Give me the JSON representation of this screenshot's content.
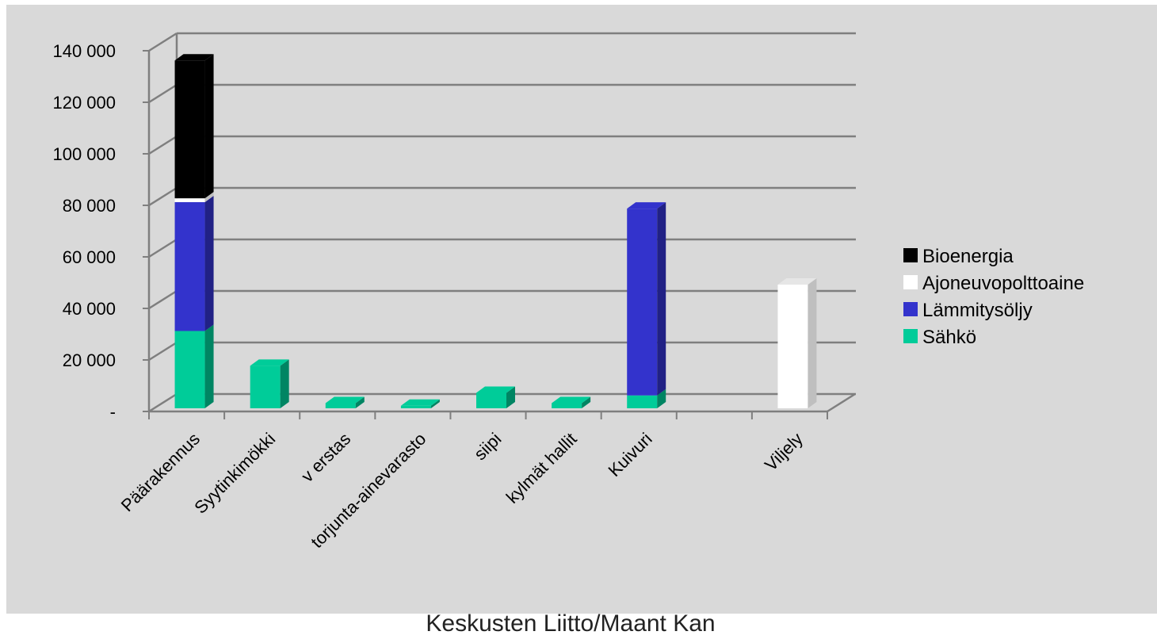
{
  "chart_data": {
    "type": "bar",
    "stacked": true,
    "three_d": true,
    "categories": [
      "Päärakennus",
      "Syytinkimökki",
      "v erstas",
      "torjunta-ainevarasto",
      "siipi",
      "kylmät hallit",
      "Kuivuri",
      "",
      "Viljely"
    ],
    "series": [
      {
        "name": "Sähkö",
        "color": "#00cc99",
        "values": [
          30000,
          16500,
          2000,
          1000,
          6000,
          2000,
          5000,
          0,
          0
        ]
      },
      {
        "name": "Lämmitysöljy",
        "color": "#3333cc",
        "values": [
          50000,
          0,
          0,
          0,
          0,
          0,
          72500,
          0,
          0
        ]
      },
      {
        "name": "Ajoneuvopolttoaine",
        "color": "#ffffff",
        "values": [
          1500,
          0,
          0,
          0,
          0,
          0,
          0,
          0,
          48000
        ]
      },
      {
        "name": "Bioenergia",
        "color": "#000000",
        "values": [
          53500,
          0,
          0,
          0,
          0,
          0,
          0,
          0,
          0
        ]
      }
    ],
    "legend_order": [
      "Bioenergia",
      "Ajoneuvopolttoaine",
      "Lämmitysöljy",
      "Sähkö"
    ],
    "legend_position": "right",
    "ylim": [
      0,
      140000
    ],
    "yticks": [
      {
        "value": 0,
        "label": "-"
      },
      {
        "value": 20000,
        "label": "20 000"
      },
      {
        "value": 40000,
        "label": "40 000"
      },
      {
        "value": 60000,
        "label": "60 000"
      },
      {
        "value": 80000,
        "label": "80 000"
      },
      {
        "value": 100000,
        "label": "100 000"
      },
      {
        "value": 120000,
        "label": "120 000"
      },
      {
        "value": 140000,
        "label": "140 000"
      }
    ],
    "grid": true,
    "background": "#d9d9d9",
    "gridline_color": "#7f7f7f"
  },
  "footer": "Keskusten Liitto/Maant Kan"
}
